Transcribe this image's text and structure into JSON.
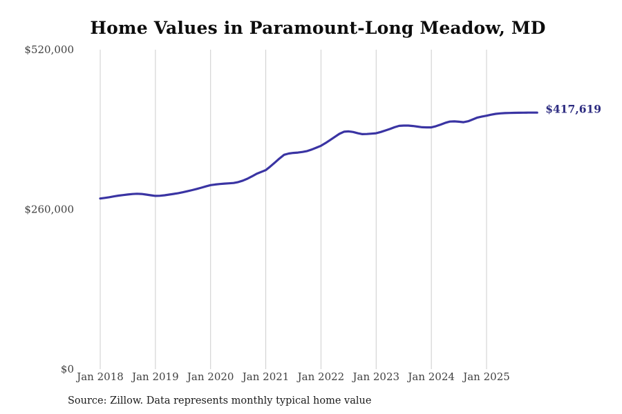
{
  "title": "Home Values in Paramount-Long Meadow, MD",
  "end_label": "$417,619",
  "source_note": "Source: Zillow. Data represents monthly typical home value",
  "colors": {
    "line": "#3a34a3",
    "end_label": "#2c2b80",
    "grid": "#cccccc",
    "axis_text": "#404040",
    "title": "#0d0d0d",
    "background": "#ffffff"
  },
  "chart_data": {
    "type": "line",
    "title": "Home Values in Paramount-Long Meadow, MD",
    "xlabel": "",
    "ylabel": "",
    "ylim": [
      0,
      520000
    ],
    "grid": "vertical-only",
    "legend": "none",
    "x_start": "Jan 2018",
    "x_frequency": "monthly",
    "x_tick_labels": [
      "Jan 2018",
      "Jan 2019",
      "Jan 2020",
      "Jan 2021",
      "Jan 2022",
      "Jan 2023",
      "Jan 2024",
      "Jan 2025"
    ],
    "x_tick_positions": [
      0,
      12,
      24,
      36,
      48,
      60,
      72,
      84
    ],
    "y_ticks": [
      0,
      260000,
      520000
    ],
    "y_tick_labels": [
      "$0",
      "$260,000",
      "$520,000"
    ],
    "final_value": 417619,
    "final_value_label": "$417,619",
    "series": [
      {
        "name": "Monthly typical home value",
        "values": [
          277800,
          278800,
          279900,
          281200,
          282500,
          283400,
          284300,
          285000,
          285500,
          285200,
          284200,
          283000,
          282000,
          282200,
          283000,
          284100,
          285300,
          286500,
          288000,
          289700,
          291500,
          293400,
          295400,
          297500,
          299500,
          300500,
          301300,
          302000,
          302500,
          303000,
          304500,
          306800,
          310000,
          313800,
          318000,
          321000,
          324000,
          330000,
          336500,
          343000,
          349000,
          351000,
          352000,
          352500,
          353500,
          355000,
          357500,
          360500,
          363500,
          368000,
          373000,
          378000,
          383000,
          386500,
          387000,
          386000,
          384000,
          382500,
          382800,
          383300,
          384000,
          386000,
          388500,
          391000,
          393800,
          396000,
          396500,
          396500,
          395800,
          394800,
          393800,
          393500,
          393500,
          395500,
          398000,
          400800,
          403000,
          403300,
          402800,
          402000,
          403500,
          406500,
          409500,
          411200,
          412500,
          414200,
          415500,
          416300,
          416800,
          417000,
          417200,
          417400,
          417500,
          417600,
          417600,
          417619
        ]
      }
    ]
  }
}
